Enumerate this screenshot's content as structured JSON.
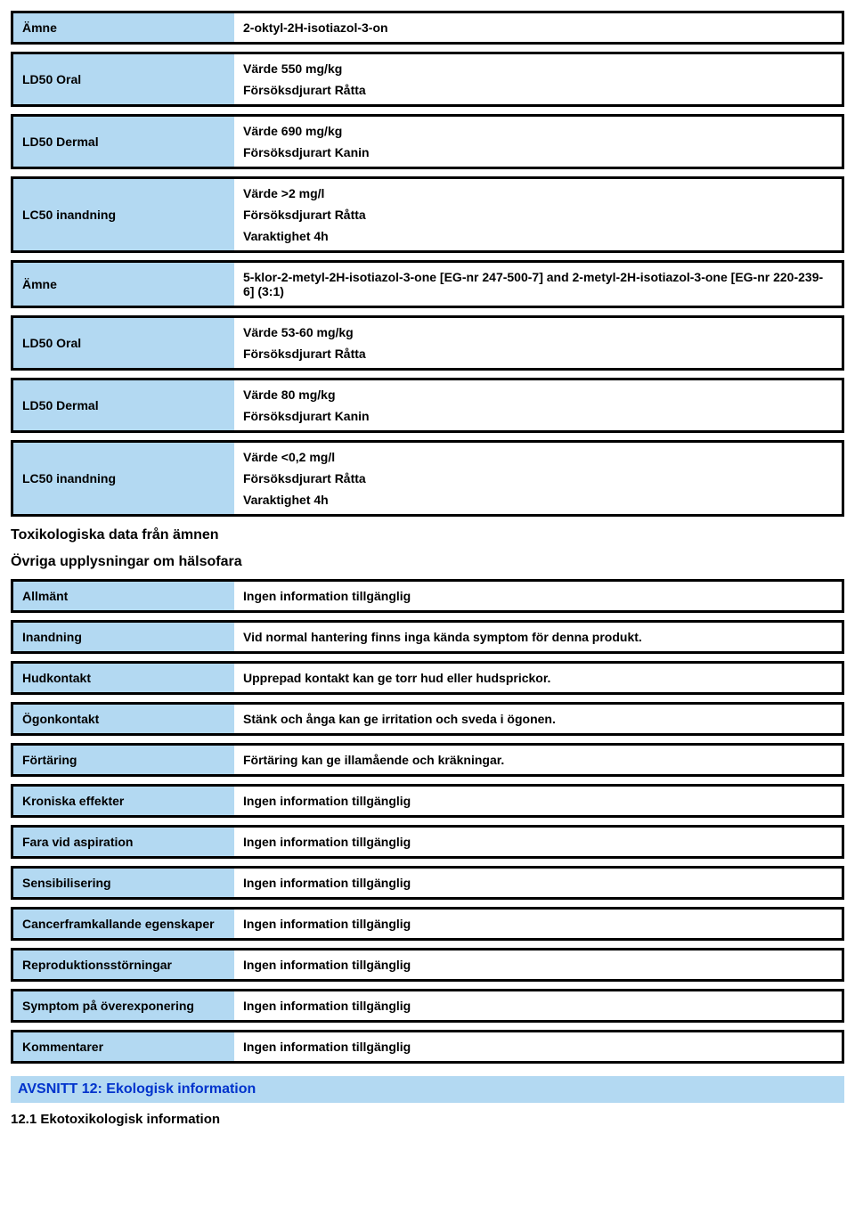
{
  "table1": {
    "rows": [
      {
        "label": "Ämne",
        "values": [
          "2-oktyl-2H-isotiazol-3-on"
        ]
      },
      {
        "label": "LD50 Oral",
        "values": [
          "Värde 550 mg/kg",
          "Försöksdjurart Råtta"
        ]
      },
      {
        "label": "LD50 Dermal",
        "values": [
          "Värde 690 mg/kg",
          "Försöksdjurart Kanin"
        ]
      },
      {
        "label": "LC50 inandning",
        "values": [
          "Värde >2 mg/l",
          "Försöksdjurart Råtta",
          "Varaktighet 4h"
        ]
      },
      {
        "label": "Ämne",
        "values": [
          "5-klor-2-metyl-2H-isotiazol-3-one [EG-nr 247-500-7] and 2-metyl-2H-isotiazol-3-one [EG-nr 220-239-6] (3:1)"
        ]
      },
      {
        "label": "LD50 Oral",
        "values": [
          "Värde 53-60 mg/kg",
          "Försöksdjurart Råtta"
        ]
      },
      {
        "label": "LD50 Dermal",
        "values": [
          "Värde 80 mg/kg",
          "Försöksdjurart Kanin"
        ]
      },
      {
        "label": "LC50 inandning",
        "values": [
          "Värde <0,2 mg/l",
          "Försöksdjurart Råtta",
          "Varaktighet 4h"
        ]
      }
    ]
  },
  "subheadings": {
    "tox": "Toxikologiska data från ämnen",
    "ovriga": "Övriga upplysningar om hälsofara"
  },
  "table2": {
    "rows": [
      {
        "label": "Allmänt",
        "value": "Ingen information tillgänglig"
      },
      {
        "label": "Inandning",
        "value": "Vid normal hantering finns inga kända symptom för denna produkt."
      },
      {
        "label": "Hudkontakt",
        "value": "Upprepad kontakt kan ge torr hud eller hudsprickor."
      },
      {
        "label": "Ögonkontakt",
        "value": "Stänk och ånga kan ge irritation och sveda i ögonen."
      },
      {
        "label": "Förtäring",
        "value": "Förtäring kan ge illamående och kräkningar."
      },
      {
        "label": "Kroniska effekter",
        "value": "Ingen information tillgänglig"
      },
      {
        "label": "Fara vid aspiration",
        "value": "Ingen information tillgänglig"
      },
      {
        "label": "Sensibilisering",
        "value": "Ingen information tillgänglig"
      },
      {
        "label": "Cancerframkallande egenskaper",
        "value": "Ingen information tillgänglig"
      },
      {
        "label": "Reproduktionsstörningar",
        "value": "Ingen information tillgänglig"
      },
      {
        "label": "Symptom på överexponering",
        "value": "Ingen information tillgänglig"
      },
      {
        "label": "Kommentarer",
        "value": "Ingen information tillgänglig"
      }
    ]
  },
  "section12": {
    "heading": "AVSNITT 12: Ekologisk information",
    "sub": "12.1 Ekotoxikologisk information"
  }
}
